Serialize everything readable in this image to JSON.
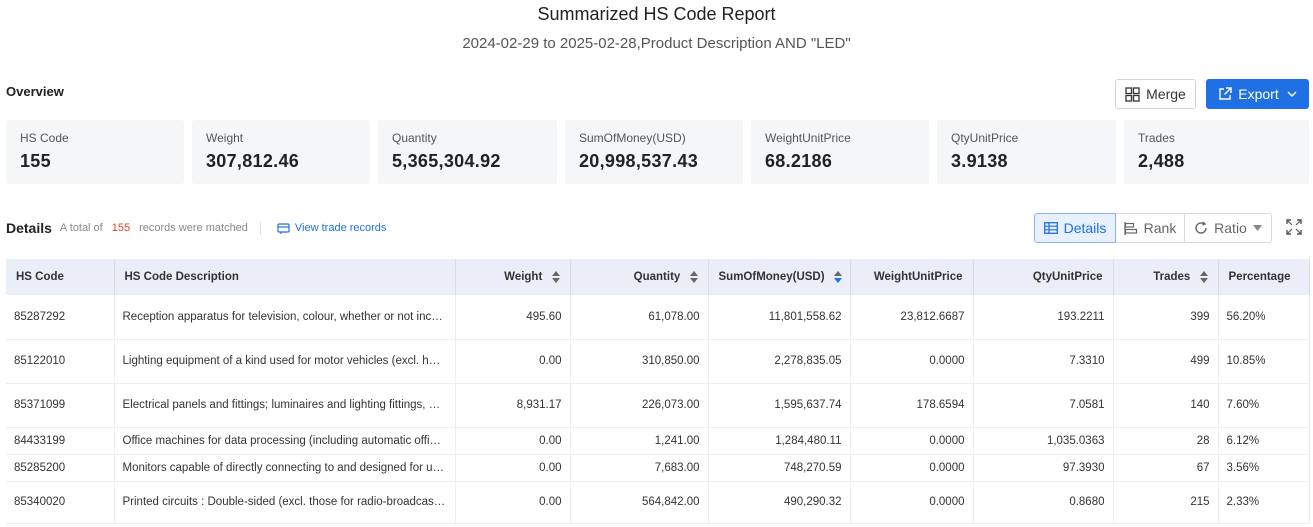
{
  "report": {
    "title": "Summarized HS Code Report",
    "subtitle": "2024-02-29 to 2025-02-28,Product Description AND \"LED\""
  },
  "overview": {
    "label": "Overview",
    "merge_label": "Merge",
    "export_label": "Export",
    "stats": [
      {
        "label": "HS Code",
        "value": "155"
      },
      {
        "label": "Weight",
        "value": "307,812.46"
      },
      {
        "label": "Quantity",
        "value": "5,365,304.92"
      },
      {
        "label": "SumOfMoney(USD)",
        "value": "20,998,537.43"
      },
      {
        "label": "WeightUnitPrice",
        "value": "68.2186"
      },
      {
        "label": "QtyUnitPrice",
        "value": "3.9138"
      },
      {
        "label": "Trades",
        "value": "2,488"
      }
    ]
  },
  "details": {
    "title": "Details",
    "total_prefix": "A total of",
    "total_count": "155",
    "total_suffix": "records were matched",
    "view_link": "View trade records",
    "views": {
      "details": "Details",
      "rank": "Rank",
      "ratio": "Ratio"
    }
  },
  "table": {
    "columns": [
      "HS Code",
      "HS Code Description",
      "Weight",
      "Quantity",
      "SumOfMoney(USD)",
      "WeightUnitPrice",
      "QtyUnitPrice",
      "Trades",
      "Percentage"
    ],
    "rows": [
      [
        "85287292",
        "Reception apparatus for television, colour, whether or not incorporating radio-broadcast receivers",
        "495.60",
        "61,078.00",
        "11,801,558.62",
        "23,812.6687",
        "193.2211",
        "399",
        "56.20%"
      ],
      [
        "85122010",
        "Lighting equipment of a kind used for motor vehicles (excl. headlamps)",
        "0.00",
        "310,850.00",
        "2,278,835.05",
        "0.0000",
        "7.3310",
        "499",
        "10.85%"
      ],
      [
        "85371099",
        "Electrical panels and fittings; luminaires and lighting fittings, etc.",
        "8,931.17",
        "226,073.00",
        "1,595,637.74",
        "178.6594",
        "7.0581",
        "140",
        "7.60%"
      ],
      [
        "84433199",
        "Office machines for data processing (including automatic office machines)",
        "0.00",
        "1,241.00",
        "1,284,480.11",
        "0.0000",
        "1,035.0363",
        "28",
        "6.12%"
      ],
      [
        "85285200",
        "Monitors capable of directly connecting to and designed for use with computers",
        "0.00",
        "7,683.00",
        "748,270.59",
        "0.0000",
        "97.3930",
        "67",
        "3.56%"
      ],
      [
        "85340020",
        "Printed circuits : Double-sided (excl. those for radio-broadcast apparatus)",
        "0.00",
        "564,842.00",
        "490,290.32",
        "0.0000",
        "0.8680",
        "215",
        "2.33%"
      ]
    ]
  },
  "colors": {
    "accent": "#1f6fe5",
    "count_red": "#e0452b",
    "header_bg": "#e9eef8",
    "card_bg": "#f5f6f8"
  }
}
